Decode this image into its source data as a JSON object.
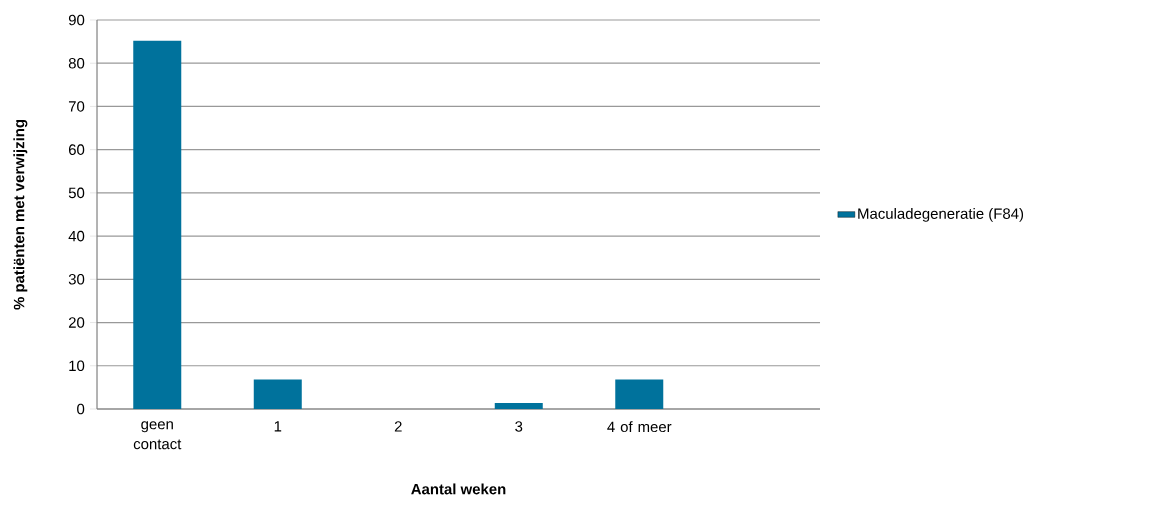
{
  "chart_data": {
    "type": "bar",
    "xlabel": "Aantal weken",
    "ylabel": "% patiënten met verwijzing",
    "categories": [
      "geen contact",
      "1",
      "2",
      "3",
      "4 of meer",
      null
    ],
    "series": [
      {
        "name": "Maculadegeneratie (F84)",
        "color": "#00729c",
        "values": [
          85.2,
          6.8,
          0,
          1.4,
          6.8,
          null
        ]
      }
    ],
    "ylim": [
      0,
      90
    ],
    "yticks": [
      0,
      10,
      20,
      30,
      40,
      50,
      60,
      70,
      80,
      90
    ],
    "grid": "y",
    "legend": "right"
  }
}
